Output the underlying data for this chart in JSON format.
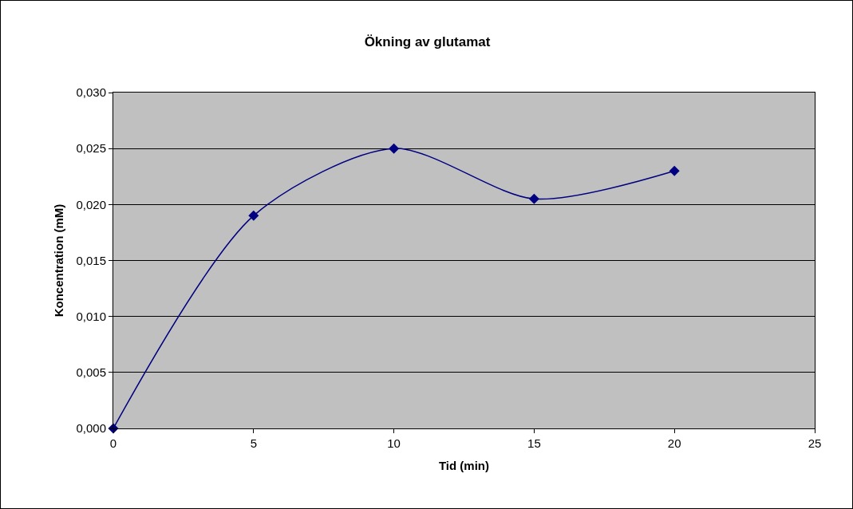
{
  "chart_data": {
    "type": "line",
    "title": "Ökning av glutamat",
    "xlabel": "Tid (min)",
    "ylabel": "Koncentration (mM)",
    "x": [
      0,
      5,
      10,
      15,
      20
    ],
    "series": [
      {
        "color": "#000080",
        "values": [
          0,
          0.019,
          0.025,
          0.0205,
          0.023
        ]
      }
    ],
    "xlim": [
      0,
      25
    ],
    "xticks": [
      0,
      5,
      10,
      15,
      20,
      25
    ],
    "ylim": [
      0,
      0.03
    ],
    "yticks": [
      {
        "value": 0,
        "label": "0,000"
      },
      {
        "value": 0.005,
        "label": "0,005"
      },
      {
        "value": 0.01,
        "label": "0,010"
      },
      {
        "value": 0.015,
        "label": "0,015"
      },
      {
        "value": 0.02,
        "label": "0,020"
      },
      {
        "value": 0.025,
        "label": "0,025"
      },
      {
        "value": 0.03,
        "label": "0,030"
      }
    ],
    "grid": "y",
    "marker": "diamond",
    "line_style": "solid"
  }
}
